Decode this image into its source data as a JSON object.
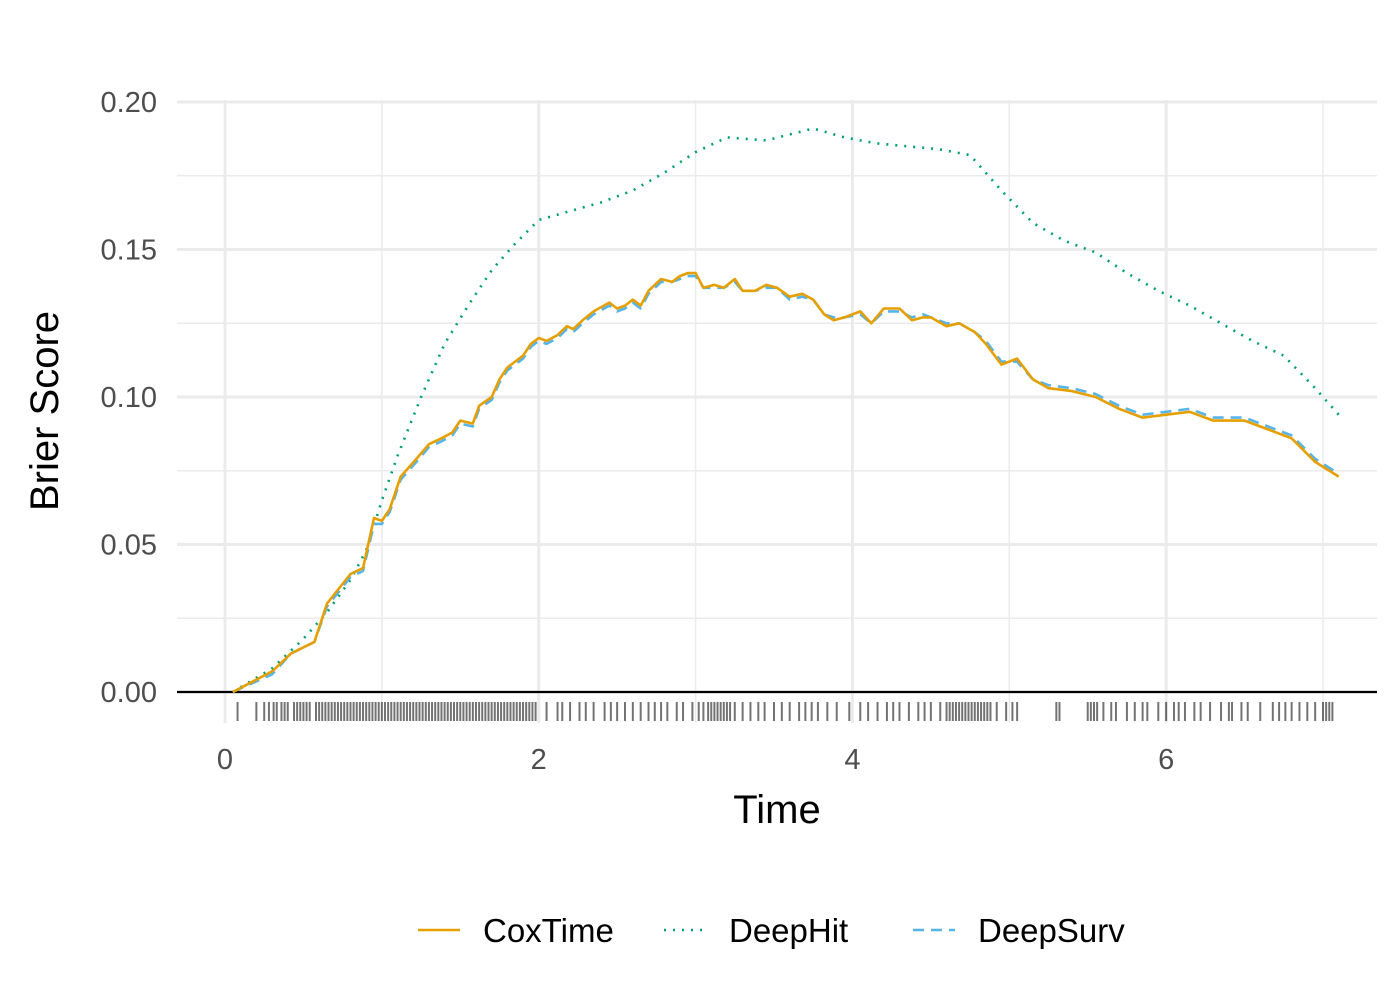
{
  "chart_data": {
    "type": "line",
    "title": "",
    "xlabel": "Time",
    "ylabel": "Brier Score",
    "xlim": [
      -0.3,
      7.2
    ],
    "ylim": [
      -0.01,
      0.202
    ],
    "x_ticks": [
      0,
      2,
      4,
      6
    ],
    "x_tick_labels": [
      "0",
      "2",
      "4",
      "6"
    ],
    "y_ticks": [
      0.0,
      0.05,
      0.1,
      0.15,
      0.2
    ],
    "y_tick_labels": [
      "0.00",
      "0.05",
      "0.10",
      "0.15",
      "0.20"
    ],
    "grid": true,
    "legend_position": "bottom",
    "series": [
      {
        "name": "CoxTime",
        "color": "#E69F00",
        "dash": "solid",
        "points": [
          [
            0.05,
            0.0
          ],
          [
            0.3,
            0.007
          ],
          [
            0.42,
            0.013
          ],
          [
            0.57,
            0.017
          ],
          [
            0.65,
            0.03
          ],
          [
            0.8,
            0.04
          ],
          [
            0.88,
            0.042
          ],
          [
            0.95,
            0.059
          ],
          [
            1.0,
            0.058
          ],
          [
            1.05,
            0.062
          ],
          [
            1.12,
            0.073
          ],
          [
            1.22,
            0.079
          ],
          [
            1.3,
            0.084
          ],
          [
            1.38,
            0.086
          ],
          [
            1.45,
            0.088
          ],
          [
            1.5,
            0.092
          ],
          [
            1.58,
            0.091
          ],
          [
            1.62,
            0.097
          ],
          [
            1.7,
            0.1
          ],
          [
            1.75,
            0.106
          ],
          [
            1.8,
            0.11
          ],
          [
            1.85,
            0.112
          ],
          [
            1.9,
            0.114
          ],
          [
            1.95,
            0.118
          ],
          [
            2.0,
            0.12
          ],
          [
            2.05,
            0.119
          ],
          [
            2.12,
            0.121
          ],
          [
            2.18,
            0.124
          ],
          [
            2.22,
            0.123
          ],
          [
            2.28,
            0.126
          ],
          [
            2.35,
            0.129
          ],
          [
            2.45,
            0.132
          ],
          [
            2.5,
            0.13
          ],
          [
            2.55,
            0.131
          ],
          [
            2.6,
            0.133
          ],
          [
            2.65,
            0.131
          ],
          [
            2.7,
            0.136
          ],
          [
            2.78,
            0.14
          ],
          [
            2.85,
            0.139
          ],
          [
            2.9,
            0.141
          ],
          [
            2.95,
            0.142
          ],
          [
            3.0,
            0.142
          ],
          [
            3.05,
            0.137
          ],
          [
            3.12,
            0.138
          ],
          [
            3.18,
            0.137
          ],
          [
            3.25,
            0.14
          ],
          [
            3.3,
            0.136
          ],
          [
            3.38,
            0.136
          ],
          [
            3.45,
            0.138
          ],
          [
            3.52,
            0.137
          ],
          [
            3.6,
            0.134
          ],
          [
            3.68,
            0.135
          ],
          [
            3.75,
            0.133
          ],
          [
            3.82,
            0.128
          ],
          [
            3.88,
            0.126
          ],
          [
            3.95,
            0.127
          ],
          [
            4.05,
            0.129
          ],
          [
            4.12,
            0.125
          ],
          [
            4.2,
            0.13
          ],
          [
            4.3,
            0.13
          ],
          [
            4.38,
            0.126
          ],
          [
            4.45,
            0.127
          ],
          [
            4.5,
            0.127
          ],
          [
            4.6,
            0.124
          ],
          [
            4.68,
            0.125
          ],
          [
            4.78,
            0.122
          ],
          [
            4.85,
            0.118
          ],
          [
            4.95,
            0.111
          ],
          [
            5.05,
            0.113
          ],
          [
            5.15,
            0.106
          ],
          [
            5.25,
            0.103
          ],
          [
            5.4,
            0.102
          ],
          [
            5.55,
            0.1
          ],
          [
            5.7,
            0.096
          ],
          [
            5.85,
            0.093
          ],
          [
            6.0,
            0.094
          ],
          [
            6.15,
            0.095
          ],
          [
            6.3,
            0.092
          ],
          [
            6.5,
            0.092
          ],
          [
            6.65,
            0.089
          ],
          [
            6.8,
            0.086
          ],
          [
            6.95,
            0.078
          ],
          [
            7.1,
            0.073
          ]
        ]
      },
      {
        "name": "DeepHit",
        "color": "#009E73",
        "dash": "dotted",
        "points": [
          [
            0.05,
            0.0
          ],
          [
            0.3,
            0.008
          ],
          [
            0.5,
            0.018
          ],
          [
            0.65,
            0.027
          ],
          [
            0.8,
            0.038
          ],
          [
            0.9,
            0.048
          ],
          [
            1.0,
            0.065
          ],
          [
            1.1,
            0.08
          ],
          [
            1.25,
            0.1
          ],
          [
            1.4,
            0.118
          ],
          [
            1.55,
            0.131
          ],
          [
            1.7,
            0.143
          ],
          [
            1.85,
            0.152
          ],
          [
            2.0,
            0.16
          ],
          [
            2.2,
            0.163
          ],
          [
            2.4,
            0.166
          ],
          [
            2.6,
            0.17
          ],
          [
            2.8,
            0.176
          ],
          [
            3.0,
            0.183
          ],
          [
            3.2,
            0.188
          ],
          [
            3.45,
            0.187
          ],
          [
            3.75,
            0.191
          ],
          [
            3.95,
            0.188
          ],
          [
            4.15,
            0.186
          ],
          [
            4.35,
            0.185
          ],
          [
            4.55,
            0.184
          ],
          [
            4.75,
            0.182
          ],
          [
            4.95,
            0.17
          ],
          [
            5.15,
            0.159
          ],
          [
            5.35,
            0.153
          ],
          [
            5.55,
            0.149
          ],
          [
            5.75,
            0.142
          ],
          [
            5.95,
            0.136
          ],
          [
            6.15,
            0.131
          ],
          [
            6.35,
            0.125
          ],
          [
            6.55,
            0.119
          ],
          [
            6.75,
            0.114
          ],
          [
            6.95,
            0.103
          ],
          [
            7.1,
            0.094
          ]
        ]
      },
      {
        "name": "DeepSurv",
        "color": "#56B4E9",
        "dash": "dashed",
        "points": [
          [
            0.05,
            0.0
          ],
          [
            0.3,
            0.006
          ],
          [
            0.42,
            0.013
          ],
          [
            0.57,
            0.017
          ],
          [
            0.65,
            0.029
          ],
          [
            0.8,
            0.039
          ],
          [
            0.88,
            0.041
          ],
          [
            0.95,
            0.057
          ],
          [
            1.0,
            0.057
          ],
          [
            1.05,
            0.061
          ],
          [
            1.12,
            0.072
          ],
          [
            1.22,
            0.078
          ],
          [
            1.3,
            0.083
          ],
          [
            1.38,
            0.085
          ],
          [
            1.45,
            0.087
          ],
          [
            1.5,
            0.091
          ],
          [
            1.58,
            0.09
          ],
          [
            1.62,
            0.096
          ],
          [
            1.7,
            0.099
          ],
          [
            1.75,
            0.105
          ],
          [
            1.8,
            0.109
          ],
          [
            1.85,
            0.111
          ],
          [
            1.9,
            0.113
          ],
          [
            1.95,
            0.117
          ],
          [
            2.0,
            0.119
          ],
          [
            2.05,
            0.118
          ],
          [
            2.12,
            0.12
          ],
          [
            2.18,
            0.123
          ],
          [
            2.22,
            0.122
          ],
          [
            2.28,
            0.125
          ],
          [
            2.35,
            0.128
          ],
          [
            2.45,
            0.131
          ],
          [
            2.5,
            0.129
          ],
          [
            2.55,
            0.13
          ],
          [
            2.6,
            0.132
          ],
          [
            2.65,
            0.13
          ],
          [
            2.7,
            0.135
          ],
          [
            2.78,
            0.139
          ],
          [
            2.85,
            0.139
          ],
          [
            2.9,
            0.14
          ],
          [
            2.95,
            0.141
          ],
          [
            3.0,
            0.141
          ],
          [
            3.05,
            0.137
          ],
          [
            3.12,
            0.137
          ],
          [
            3.18,
            0.137
          ],
          [
            3.25,
            0.139
          ],
          [
            3.3,
            0.136
          ],
          [
            3.38,
            0.136
          ],
          [
            3.45,
            0.137
          ],
          [
            3.52,
            0.137
          ],
          [
            3.6,
            0.133
          ],
          [
            3.68,
            0.134
          ],
          [
            3.75,
            0.133
          ],
          [
            3.82,
            0.128
          ],
          [
            3.88,
            0.127
          ],
          [
            3.95,
            0.127
          ],
          [
            4.05,
            0.128
          ],
          [
            4.12,
            0.125
          ],
          [
            4.2,
            0.129
          ],
          [
            4.3,
            0.129
          ],
          [
            4.38,
            0.127
          ],
          [
            4.45,
            0.128
          ],
          [
            4.5,
            0.127
          ],
          [
            4.6,
            0.125
          ],
          [
            4.68,
            0.125
          ],
          [
            4.78,
            0.122
          ],
          [
            4.85,
            0.119
          ],
          [
            4.95,
            0.112
          ],
          [
            5.05,
            0.112
          ],
          [
            5.15,
            0.106
          ],
          [
            5.25,
            0.104
          ],
          [
            5.4,
            0.103
          ],
          [
            5.55,
            0.101
          ],
          [
            5.7,
            0.097
          ],
          [
            5.85,
            0.094
          ],
          [
            6.0,
            0.095
          ],
          [
            6.15,
            0.096
          ],
          [
            6.3,
            0.093
          ],
          [
            6.5,
            0.093
          ],
          [
            6.65,
            0.09
          ],
          [
            6.8,
            0.087
          ],
          [
            6.95,
            0.079
          ],
          [
            7.1,
            0.074
          ]
        ]
      }
    ],
    "rug": {
      "color": "#000000",
      "x": [
        0.08,
        0.2,
        0.25,
        0.28,
        0.31,
        0.33,
        0.36,
        0.38,
        0.4,
        0.44,
        0.46,
        0.48,
        0.5,
        0.52,
        0.54,
        0.58,
        0.6,
        0.62,
        0.64,
        0.66,
        0.68,
        0.7,
        0.72,
        0.74,
        0.76,
        0.78,
        0.8,
        0.82,
        0.84,
        0.86,
        0.88,
        0.9,
        0.92,
        0.94,
        0.96,
        0.98,
        1.0,
        1.02,
        1.04,
        1.06,
        1.08,
        1.1,
        1.12,
        1.14,
        1.16,
        1.18,
        1.2,
        1.22,
        1.24,
        1.26,
        1.28,
        1.3,
        1.32,
        1.34,
        1.36,
        1.38,
        1.4,
        1.42,
        1.44,
        1.46,
        1.48,
        1.5,
        1.52,
        1.54,
        1.56,
        1.58,
        1.6,
        1.62,
        1.64,
        1.66,
        1.68,
        1.7,
        1.72,
        1.74,
        1.76,
        1.78,
        1.8,
        1.82,
        1.84,
        1.86,
        1.88,
        1.9,
        1.92,
        1.94,
        1.96,
        1.98,
        2.05,
        2.12,
        2.15,
        2.2,
        2.26,
        2.3,
        2.35,
        2.42,
        2.46,
        2.5,
        2.55,
        2.6,
        2.65,
        2.7,
        2.74,
        2.78,
        2.82,
        2.88,
        2.92,
        2.98,
        3.02,
        3.05,
        3.08,
        3.1,
        3.12,
        3.14,
        3.16,
        3.18,
        3.2,
        3.22,
        3.25,
        3.3,
        3.35,
        3.4,
        3.44,
        3.5,
        3.55,
        3.6,
        3.66,
        3.7,
        3.74,
        3.78,
        3.84,
        3.9,
        3.98,
        4.05,
        4.1,
        4.16,
        4.22,
        4.26,
        4.3,
        4.36,
        4.42,
        4.46,
        4.5,
        4.56,
        4.6,
        4.62,
        4.64,
        4.66,
        4.68,
        4.7,
        4.72,
        4.74,
        4.76,
        4.78,
        4.8,
        4.82,
        4.84,
        4.86,
        4.88,
        4.92,
        4.98,
        5.02,
        5.05,
        5.3,
        5.32,
        5.5,
        5.52,
        5.54,
        5.56,
        5.6,
        5.65,
        5.68,
        5.75,
        5.8,
        5.85,
        5.88,
        5.95,
        6.0,
        6.05,
        6.08,
        6.12,
        6.18,
        6.22,
        6.28,
        6.35,
        6.4,
        6.42,
        6.48,
        6.52,
        6.6,
        6.68,
        6.72,
        6.76,
        6.8,
        6.85,
        6.9,
        6.95,
        7.0,
        7.02,
        7.04,
        7.06
      ]
    }
  }
}
